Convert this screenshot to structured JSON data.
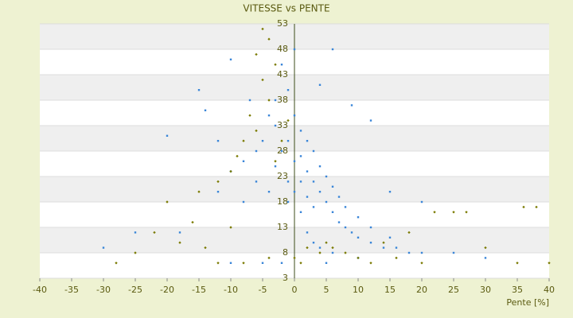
{
  "chart_data": {
    "type": "scatter",
    "title": "VITESSE vs PENTE",
    "x_label": "Pente [%]",
    "xlim": [
      -40,
      40
    ],
    "xticks": [
      -40,
      -35,
      -30,
      -25,
      -20,
      -15,
      -10,
      -5,
      0,
      5,
      10,
      15,
      20,
      25,
      30,
      35,
      40
    ],
    "ylim": [
      3,
      53
    ],
    "yticks": [
      3,
      8,
      13,
      18,
      23,
      28,
      33,
      38,
      43,
      48,
      53
    ],
    "series": [
      {
        "color": "#3a86d8",
        "x": [
          -1,
          -2,
          0,
          1,
          2,
          3,
          4,
          5,
          6,
          7,
          8,
          9,
          10,
          12,
          14,
          16,
          18,
          20,
          -3,
          -4,
          -5,
          -6,
          -8,
          -10,
          -12,
          -15,
          -18,
          -20,
          -25,
          -30,
          -3,
          -1,
          0,
          1,
          2,
          3,
          4,
          5,
          6,
          7,
          8,
          10,
          12,
          15,
          0,
          6,
          9,
          4,
          12,
          -2,
          -10,
          -7,
          -14,
          1,
          2,
          3,
          4,
          6,
          -2,
          -5,
          -10,
          5,
          10,
          25,
          30,
          15,
          20,
          -1,
          0,
          1,
          2,
          3,
          -4,
          -6,
          -8,
          -12,
          -3,
          -1
        ],
        "values": [
          30,
          28,
          35,
          27,
          24,
          22,
          20,
          18,
          16,
          14,
          13,
          12,
          11,
          10,
          9,
          9,
          8,
          8,
          33,
          35,
          30,
          28,
          26,
          24,
          20,
          40,
          12,
          31,
          12,
          9,
          25,
          22,
          20,
          32,
          30,
          28,
          25,
          23,
          21,
          19,
          17,
          15,
          13,
          11,
          48,
          48,
          37,
          41,
          34,
          45,
          46,
          38,
          36,
          16,
          12,
          10,
          9,
          8,
          6,
          6,
          6,
          6,
          7,
          8,
          7,
          20,
          18,
          18,
          26,
          22,
          19,
          17,
          20,
          22,
          18,
          30,
          38,
          40
        ]
      },
      {
        "color": "#7a7a00",
        "x": [
          -5,
          -4,
          -6,
          -3,
          -5,
          -4,
          -7,
          -6,
          -8,
          -9,
          -10,
          -12,
          -15,
          -20,
          -25,
          -28,
          -12,
          -8,
          -4,
          0,
          4,
          6,
          8,
          10,
          14,
          18,
          22,
          25,
          27,
          36,
          38,
          30,
          35,
          40,
          12,
          16,
          20,
          -2,
          -3,
          -1,
          2,
          5,
          -16,
          -22,
          -18,
          -10,
          -14,
          1
        ],
        "values": [
          52,
          50,
          47,
          45,
          42,
          38,
          35,
          32,
          30,
          27,
          24,
          22,
          20,
          18,
          8,
          6,
          6,
          6,
          7,
          7,
          8,
          9,
          8,
          7,
          10,
          12,
          16,
          16,
          16,
          17,
          17,
          9,
          6,
          6,
          6,
          7,
          6,
          30,
          26,
          34,
          9,
          10,
          14,
          12,
          10,
          13,
          9,
          6
        ]
      }
    ]
  }
}
